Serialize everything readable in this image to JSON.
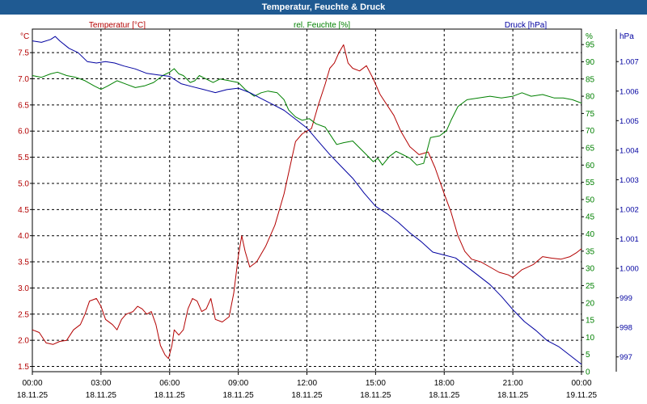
{
  "window": {
    "title": "Temperatur, Feuchte & Druck"
  },
  "chart_data": {
    "type": "line",
    "title": "Temperatur, Feuchte & Druck",
    "x": {
      "unit": "hours since 18.11.25 00:00",
      "range": [
        0,
        24
      ],
      "ticks": [
        {
          "time": "00:00",
          "date": "18.11.25",
          "h": 0
        },
        {
          "time": "03:00",
          "date": "18.11.25",
          "h": 3
        },
        {
          "time": "06:00",
          "date": "18.11.25",
          "h": 6
        },
        {
          "time": "09:00",
          "date": "18.11.25",
          "h": 9
        },
        {
          "time": "12:00",
          "date": "18.11.25",
          "h": 12
        },
        {
          "time": "15:00",
          "date": "18.11.25",
          "h": 15
        },
        {
          "time": "18:00",
          "date": "18.11.25",
          "h": 18
        },
        {
          "time": "21:00",
          "date": "18.11.25",
          "h": 21
        },
        {
          "time": "00:00",
          "date": "19.11.25",
          "h": 24
        }
      ]
    },
    "axes": {
      "left": {
        "unit": "°C",
        "range": [
          1.4,
          7.95
        ],
        "ticks": [
          {
            "v": 1.5,
            "label": "1.5"
          },
          {
            "v": 2.0,
            "label": "2.0"
          },
          {
            "v": 2.5,
            "label": "2.5"
          },
          {
            "v": 3.0,
            "label": "3.0"
          },
          {
            "v": 3.5,
            "label": "3.5"
          },
          {
            "v": 4.0,
            "label": "4.0"
          },
          {
            "v": 4.5,
            "label": "4.5"
          },
          {
            "v": 5.0,
            "label": "5.0"
          },
          {
            "v": 5.5,
            "label": "5.5"
          },
          {
            "v": 6.0,
            "label": "6.0"
          },
          {
            "v": 6.5,
            "label": "6.5"
          },
          {
            "v": 7.0,
            "label": "7.0"
          },
          {
            "v": 7.5,
            "label": "7.5"
          }
        ]
      },
      "middle": {
        "unit": "%",
        "range": [
          0,
          99.5
        ],
        "ticks": [
          {
            "v": 0,
            "label": "0"
          },
          {
            "v": 5,
            "label": "5"
          },
          {
            "v": 10,
            "label": "10"
          },
          {
            "v": 15,
            "label": "15"
          },
          {
            "v": 20,
            "label": "20"
          },
          {
            "v": 25,
            "label": "25"
          },
          {
            "v": 30,
            "label": "30"
          },
          {
            "v": 35,
            "label": "35"
          },
          {
            "v": 40,
            "label": "40"
          },
          {
            "v": 45,
            "label": "45"
          },
          {
            "v": 50,
            "label": "50"
          },
          {
            "v": 55,
            "label": "55"
          },
          {
            "v": 60,
            "label": "60"
          },
          {
            "v": 65,
            "label": "65"
          },
          {
            "v": 70,
            "label": "70"
          },
          {
            "v": 75,
            "label": "75"
          },
          {
            "v": 80,
            "label": "80"
          },
          {
            "v": 85,
            "label": "85"
          },
          {
            "v": 90,
            "label": "90"
          },
          {
            "v": 95,
            "label": "95"
          }
        ]
      },
      "right": {
        "unit": "hPa",
        "range": [
          996.5,
          1008.1
        ],
        "ticks": [
          {
            "v": 997,
            "label": "997"
          },
          {
            "v": 998,
            "label": "998"
          },
          {
            "v": 999,
            "label": "999"
          },
          {
            "v": 1000,
            "label": "1.000"
          },
          {
            "v": 1001,
            "label": "1.001"
          },
          {
            "v": 1002,
            "label": "1.002"
          },
          {
            "v": 1003,
            "label": "1.003"
          },
          {
            "v": 1004,
            "label": "1.004"
          },
          {
            "v": 1005,
            "label": "1.005"
          },
          {
            "v": 1006,
            "label": "1.006"
          },
          {
            "v": 1007,
            "label": "1.007"
          }
        ]
      }
    },
    "grid": true,
    "series": [
      {
        "name": "Temperatur [°C]",
        "axis": "left",
        "color": "#b30000",
        "points": [
          [
            0,
            2.2
          ],
          [
            0.3,
            2.15
          ],
          [
            0.6,
            1.95
          ],
          [
            0.9,
            1.92
          ],
          [
            1.2,
            1.98
          ],
          [
            1.5,
            2.0
          ],
          [
            1.8,
            2.2
          ],
          [
            2.1,
            2.3
          ],
          [
            2.3,
            2.5
          ],
          [
            2.5,
            2.75
          ],
          [
            2.8,
            2.8
          ],
          [
            3.0,
            2.65
          ],
          [
            3.2,
            2.4
          ],
          [
            3.5,
            2.3
          ],
          [
            3.7,
            2.2
          ],
          [
            3.9,
            2.4
          ],
          [
            4.1,
            2.5
          ],
          [
            4.4,
            2.55
          ],
          [
            4.6,
            2.65
          ],
          [
            4.8,
            2.6
          ],
          [
            5.0,
            2.5
          ],
          [
            5.2,
            2.55
          ],
          [
            5.4,
            2.3
          ],
          [
            5.6,
            1.9
          ],
          [
            5.8,
            1.72
          ],
          [
            5.95,
            1.65
          ],
          [
            6.1,
            1.9
          ],
          [
            6.2,
            2.2
          ],
          [
            6.4,
            2.1
          ],
          [
            6.6,
            2.2
          ],
          [
            6.8,
            2.6
          ],
          [
            7.0,
            2.8
          ],
          [
            7.2,
            2.75
          ],
          [
            7.4,
            2.55
          ],
          [
            7.6,
            2.6
          ],
          [
            7.8,
            2.8
          ],
          [
            8.0,
            2.4
          ],
          [
            8.3,
            2.35
          ],
          [
            8.6,
            2.45
          ],
          [
            8.8,
            2.9
          ],
          [
            9.0,
            3.6
          ],
          [
            9.15,
            4.0
          ],
          [
            9.3,
            3.7
          ],
          [
            9.5,
            3.4
          ],
          [
            9.8,
            3.5
          ],
          [
            10.2,
            3.8
          ],
          [
            10.6,
            4.2
          ],
          [
            11.0,
            4.8
          ],
          [
            11.3,
            5.4
          ],
          [
            11.5,
            5.8
          ],
          [
            11.8,
            5.95
          ],
          [
            12.2,
            6.05
          ],
          [
            12.5,
            6.5
          ],
          [
            12.8,
            6.9
          ],
          [
            13.0,
            7.2
          ],
          [
            13.2,
            7.3
          ],
          [
            13.4,
            7.5
          ],
          [
            13.6,
            7.65
          ],
          [
            13.8,
            7.3
          ],
          [
            14.0,
            7.2
          ],
          [
            14.3,
            7.15
          ],
          [
            14.6,
            7.25
          ],
          [
            14.9,
            7.0
          ],
          [
            15.2,
            6.7
          ],
          [
            15.5,
            6.5
          ],
          [
            15.8,
            6.3
          ],
          [
            16.1,
            6.0
          ],
          [
            16.5,
            5.7
          ],
          [
            16.9,
            5.55
          ],
          [
            17.3,
            5.6
          ],
          [
            17.6,
            5.3
          ],
          [
            18.0,
            4.8
          ],
          [
            18.3,
            4.45
          ],
          [
            18.6,
            4.0
          ],
          [
            18.9,
            3.7
          ],
          [
            19.2,
            3.55
          ],
          [
            19.6,
            3.5
          ],
          [
            20.0,
            3.4
          ],
          [
            20.4,
            3.3
          ],
          [
            20.8,
            3.25
          ],
          [
            21.0,
            3.2
          ],
          [
            21.4,
            3.35
          ],
          [
            21.9,
            3.45
          ],
          [
            22.3,
            3.6
          ],
          [
            22.7,
            3.57
          ],
          [
            23.1,
            3.55
          ],
          [
            23.5,
            3.6
          ],
          [
            23.8,
            3.68
          ],
          [
            24.0,
            3.75
          ]
        ]
      },
      {
        "name": "rel. Feuchte [%]",
        "axis": "middle",
        "color": "#008000",
        "points": [
          [
            0,
            86
          ],
          [
            0.4,
            85.5
          ],
          [
            0.8,
            86.5
          ],
          [
            1.1,
            87
          ],
          [
            1.5,
            86
          ],
          [
            1.9,
            85.5
          ],
          [
            2.3,
            84.5
          ],
          [
            2.7,
            83
          ],
          [
            3.0,
            82
          ],
          [
            3.3,
            83
          ],
          [
            3.7,
            84.5
          ],
          [
            4.1,
            83.5
          ],
          [
            4.5,
            82.5
          ],
          [
            4.9,
            83
          ],
          [
            5.3,
            84
          ],
          [
            5.7,
            86
          ],
          [
            6.0,
            87
          ],
          [
            6.2,
            88
          ],
          [
            6.4,
            86.5
          ],
          [
            6.6,
            86
          ],
          [
            6.9,
            84
          ],
          [
            7.1,
            84.5
          ],
          [
            7.3,
            86
          ],
          [
            7.6,
            85
          ],
          [
            7.9,
            84
          ],
          [
            8.2,
            85
          ],
          [
            8.6,
            84.5
          ],
          [
            9.0,
            84
          ],
          [
            9.3,
            82
          ],
          [
            9.7,
            80
          ],
          [
            10.0,
            81
          ],
          [
            10.3,
            81.5
          ],
          [
            10.7,
            81
          ],
          [
            11.0,
            79
          ],
          [
            11.2,
            76
          ],
          [
            11.5,
            74
          ],
          [
            11.8,
            73
          ],
          [
            12.1,
            73.5
          ],
          [
            12.4,
            72
          ],
          [
            12.8,
            71
          ],
          [
            13.1,
            68
          ],
          [
            13.3,
            66
          ],
          [
            13.6,
            66.5
          ],
          [
            14.0,
            67
          ],
          [
            14.3,
            65
          ],
          [
            14.6,
            63
          ],
          [
            14.9,
            61
          ],
          [
            15.1,
            62
          ],
          [
            15.3,
            60
          ],
          [
            15.6,
            62.5
          ],
          [
            15.9,
            64
          ],
          [
            16.2,
            63
          ],
          [
            16.5,
            62
          ],
          [
            16.8,
            60
          ],
          [
            17.1,
            60.5
          ],
          [
            17.4,
            68
          ],
          [
            17.8,
            68.5
          ],
          [
            18.1,
            70
          ],
          [
            18.3,
            73
          ],
          [
            18.6,
            77
          ],
          [
            19.0,
            79
          ],
          [
            19.5,
            79.5
          ],
          [
            20.0,
            80
          ],
          [
            20.5,
            79.5
          ],
          [
            21.0,
            80
          ],
          [
            21.4,
            81
          ],
          [
            21.8,
            80
          ],
          [
            22.3,
            80.5
          ],
          [
            22.8,
            79.5
          ],
          [
            23.2,
            79.5
          ],
          [
            23.6,
            79
          ],
          [
            24.0,
            78
          ]
        ]
      },
      {
        "name": "Druck [hPa]",
        "axis": "right",
        "color": "#0000a0",
        "points": [
          [
            0,
            1007.7
          ],
          [
            0.4,
            1007.65
          ],
          [
            0.8,
            1007.75
          ],
          [
            1.0,
            1007.85
          ],
          [
            1.2,
            1007.7
          ],
          [
            1.6,
            1007.45
          ],
          [
            2.0,
            1007.3
          ],
          [
            2.4,
            1007.0
          ],
          [
            2.8,
            1006.95
          ],
          [
            3.2,
            1007.0
          ],
          [
            3.6,
            1006.95
          ],
          [
            4.0,
            1006.85
          ],
          [
            4.5,
            1006.75
          ],
          [
            5.0,
            1006.6
          ],
          [
            5.5,
            1006.55
          ],
          [
            6.0,
            1006.5
          ],
          [
            6.5,
            1006.25
          ],
          [
            7.0,
            1006.15
          ],
          [
            7.5,
            1006.05
          ],
          [
            8.0,
            1005.95
          ],
          [
            8.5,
            1006.05
          ],
          [
            9.0,
            1006.1
          ],
          [
            9.5,
            1005.95
          ],
          [
            10.0,
            1005.75
          ],
          [
            10.5,
            1005.55
          ],
          [
            11.0,
            1005.35
          ],
          [
            11.5,
            1005.05
          ],
          [
            12.0,
            1004.75
          ],
          [
            12.5,
            1004.3
          ],
          [
            13.0,
            1003.85
          ],
          [
            13.5,
            1003.45
          ],
          [
            14.0,
            1003.05
          ],
          [
            14.5,
            1002.55
          ],
          [
            15.0,
            1002.1
          ],
          [
            15.5,
            1001.85
          ],
          [
            16.0,
            1001.55
          ],
          [
            16.5,
            1001.2
          ],
          [
            17.0,
            1000.9
          ],
          [
            17.5,
            1000.55
          ],
          [
            18.0,
            1000.45
          ],
          [
            18.5,
            1000.35
          ],
          [
            19.0,
            1000.05
          ],
          [
            19.5,
            999.75
          ],
          [
            20.0,
            999.45
          ],
          [
            20.5,
            999.05
          ],
          [
            21.0,
            998.6
          ],
          [
            21.5,
            998.2
          ],
          [
            22.0,
            997.9
          ],
          [
            22.5,
            997.55
          ],
          [
            23.0,
            997.35
          ],
          [
            23.5,
            997.05
          ],
          [
            24.0,
            996.75
          ]
        ]
      }
    ]
  }
}
